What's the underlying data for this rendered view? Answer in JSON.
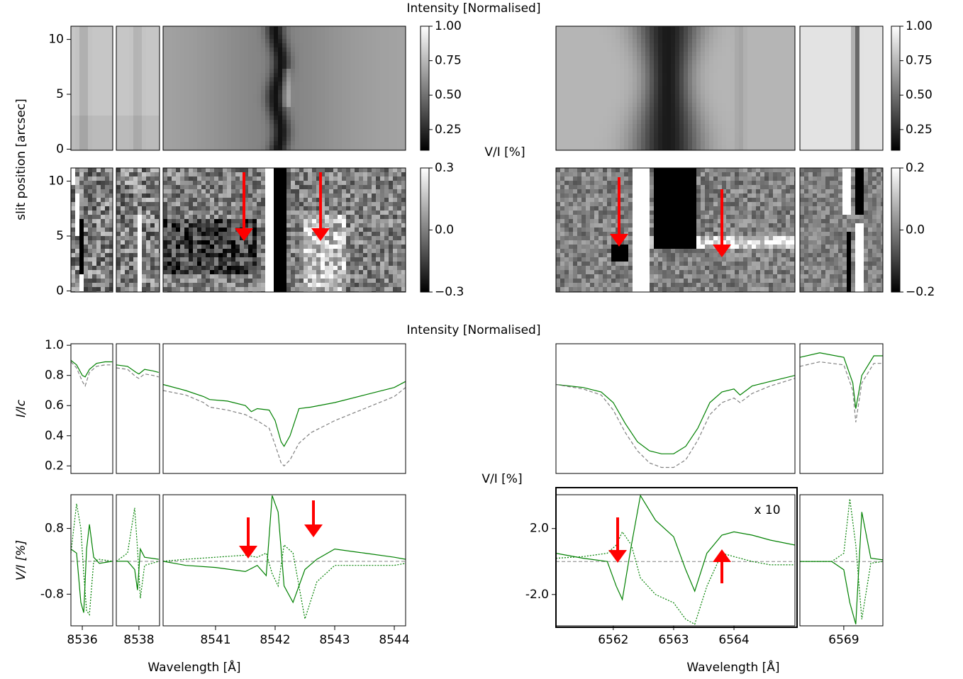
{
  "chart_data": [
    {
      "type": "heatmap",
      "title": "Intensity [Normalised]",
      "ylabel": "slit position [arcsec]",
      "xsegments": [
        [
          8535.6,
          8537.07
        ],
        [
          8537.2,
          8538.73
        ],
        [
          8540.12,
          8544.19
        ]
      ],
      "ylim": [
        -0.1,
        11.2
      ],
      "yticks": [
        0,
        5,
        10
      ],
      "clim": [
        0.1,
        1.0
      ],
      "cticks": [
        {
          "value": 1,
          "label": "1.00"
        },
        {
          "value": 0.75,
          "label": "0.75"
        },
        {
          "value": 0.5,
          "label": "0.50"
        },
        {
          "value": 0.25,
          "label": "0.25"
        }
      ]
    },
    {
      "type": "heatmap",
      "xsegments": [
        [
          6561.05,
          6565.01
        ],
        [
          6568.27,
          6569.65
        ]
      ],
      "ylim": [
        -0.1,
        11.2
      ],
      "clim": [
        0.1,
        1.0
      ],
      "cticks": [
        {
          "value": 1,
          "label": "1.00"
        },
        {
          "value": 0.75,
          "label": "0.75"
        },
        {
          "value": 0.5,
          "label": "0.50"
        },
        {
          "value": 0.25,
          "label": "0.25"
        }
      ]
    },
    {
      "type": "heatmap",
      "title": "V/I [%]",
      "xsegments": [
        [
          8535.6,
          8537.07
        ],
        [
          8537.2,
          8538.73
        ],
        [
          8540.12,
          8544.19
        ]
      ],
      "ylim": [
        -0.1,
        11.2
      ],
      "yticks": [
        0,
        5,
        10
      ],
      "clim": [
        -0.3,
        0.3
      ],
      "cticks": [
        0.3,
        {
          "value": 0,
          "label": "0.0"
        },
        {
          "value": -0.3,
          "label": "−0.3"
        }
      ]
    },
    {
      "type": "heatmap",
      "xsegments": [
        [
          6561.05,
          6565.01
        ],
        [
          6568.27,
          6569.65
        ]
      ],
      "ylim": [
        -0.1,
        11.2
      ],
      "clim": [
        -0.2,
        0.2
      ],
      "cticks": [
        0.2,
        {
          "value": 0,
          "label": "0.0"
        },
        {
          "value": -0.2,
          "label": "−0.2"
        }
      ]
    },
    {
      "type": "line",
      "title": "Intensity [Normalised]",
      "ylabel": "I/Ic",
      "xsegments": [
        [
          8535.6,
          8537.07
        ],
        [
          8537.2,
          8538.73
        ],
        [
          8540.12,
          8544.19
        ]
      ],
      "ylim": [
        0.15,
        1.01
      ],
      "yticks": [
        {
          "value": 1,
          "label": "1.0"
        },
        0.8,
        0.6,
        0.4,
        0.2
      ],
      "x": [
        8535.6,
        8535.8,
        8536.0,
        8536.1,
        8536.25,
        8536.5,
        8536.8,
        8537.05,
        null,
        8537.2,
        8537.6,
        8537.9,
        8538.0,
        8538.2,
        8538.5,
        8538.7,
        null,
        8540.12,
        8540.5,
        8540.8,
        8540.9,
        8541.2,
        8541.5,
        8541.6,
        8541.7,
        8541.9,
        8542.0,
        8542.1,
        8542.15,
        8542.25,
        8542.4,
        8542.6,
        8543.0,
        8543.5,
        8544.0,
        8544.19
      ],
      "series": [
        {
          "color": "#008000",
          "style": "solid",
          "values": [
            0.9,
            0.87,
            0.8,
            0.79,
            0.84,
            0.88,
            0.89,
            0.89,
            null,
            0.87,
            0.86,
            0.82,
            0.81,
            0.84,
            0.83,
            0.82,
            null,
            0.74,
            0.7,
            0.66,
            0.64,
            0.63,
            0.6,
            0.56,
            0.58,
            0.57,
            0.5,
            0.36,
            0.33,
            0.4,
            0.58,
            0.59,
            0.62,
            0.67,
            0.72,
            0.76
          ]
        },
        {
          "color": "#808080",
          "style": "dashed",
          "values": [
            0.89,
            0.85,
            0.76,
            0.73,
            0.82,
            0.86,
            0.87,
            0.87,
            null,
            0.85,
            0.84,
            0.79,
            0.78,
            0.81,
            0.8,
            0.79,
            null,
            0.7,
            0.67,
            0.62,
            0.59,
            0.57,
            0.54,
            0.52,
            0.5,
            0.45,
            0.34,
            0.22,
            0.2,
            0.24,
            0.35,
            0.42,
            0.5,
            0.58,
            0.66,
            0.72
          ]
        }
      ]
    },
    {
      "type": "line",
      "xsegments": [
        [
          6561.05,
          6565.01
        ],
        [
          6568.27,
          6569.65
        ]
      ],
      "ylim": [
        0.15,
        1.01
      ],
      "x": [
        6561.05,
        6561.5,
        6561.8,
        6562.0,
        6562.2,
        6562.4,
        6562.6,
        6562.8,
        6563.0,
        6563.2,
        6563.4,
        6563.6,
        6563.8,
        6564.0,
        6564.1,
        6564.3,
        6564.6,
        6565.01,
        null,
        6568.27,
        6568.6,
        6569.0,
        6569.15,
        6569.2,
        6569.3,
        6569.5,
        6569.65
      ],
      "series": [
        {
          "color": "#008000",
          "style": "solid",
          "values": [
            0.74,
            0.72,
            0.69,
            0.62,
            0.48,
            0.36,
            0.3,
            0.28,
            0.28,
            0.33,
            0.45,
            0.62,
            0.69,
            0.71,
            0.67,
            0.73,
            0.76,
            0.8,
            null,
            0.92,
            0.95,
            0.92,
            0.75,
            0.58,
            0.8,
            0.93,
            0.93
          ]
        },
        {
          "color": "#808080",
          "style": "dashed",
          "values": [
            0.74,
            0.71,
            0.67,
            0.57,
            0.42,
            0.3,
            0.22,
            0.19,
            0.19,
            0.24,
            0.37,
            0.54,
            0.62,
            0.65,
            0.62,
            0.68,
            0.73,
            0.78,
            null,
            0.86,
            0.89,
            0.87,
            0.7,
            0.49,
            0.75,
            0.88,
            0.88
          ]
        }
      ]
    },
    {
      "type": "line",
      "ylabel": "V/I [%]",
      "xlabel": "Wavelength [Å]",
      "xsegments": [
        [
          8535.6,
          8537.07
        ],
        [
          8537.2,
          8538.73
        ],
        [
          8540.12,
          8544.19
        ]
      ],
      "ylim": [
        -1.57,
        1.62
      ],
      "yticks": [
        0.8,
        -0.8
      ],
      "xticks": [
        8536,
        8538,
        8541,
        8542,
        8543,
        8544
      ],
      "hline": 0,
      "x": [
        8535.6,
        8535.8,
        8535.95,
        8536.05,
        8536.15,
        8536.25,
        8536.4,
        8536.6,
        8537.05,
        null,
        8537.2,
        8537.6,
        8537.85,
        8537.95,
        8538.05,
        8538.2,
        8538.7,
        null,
        8540.12,
        8540.5,
        8541.0,
        8541.5,
        8541.7,
        8541.85,
        8541.95,
        8542.05,
        8542.15,
        8542.3,
        8542.5,
        8542.7,
        8543.0,
        8543.5,
        8544.0,
        8544.19
      ],
      "series": [
        {
          "color": "#008000",
          "style": "solid",
          "values": [
            0.3,
            0.2,
            -1.0,
            -1.25,
            0.3,
            0.9,
            0.1,
            -0.05,
            0,
            null,
            0,
            0,
            -0.2,
            -0.7,
            0.3,
            0.1,
            0.05,
            null,
            0,
            -0.1,
            -0.15,
            -0.25,
            -0.1,
            -0.35,
            1.6,
            1.2,
            -0.6,
            -1.0,
            -0.2,
            0.05,
            0.3,
            0.2,
            0.1,
            0.05
          ]
        },
        {
          "color": "#008000",
          "style": "dotted",
          "values": [
            0.2,
            1.4,
            0.8,
            -0.3,
            -1.2,
            -1.3,
            0.0,
            0.05,
            0,
            null,
            0,
            0.2,
            1.3,
            0.3,
            -0.9,
            -0.1,
            0,
            null,
            0,
            0.05,
            0.1,
            0.15,
            0.1,
            0.2,
            -0.3,
            -0.6,
            0.4,
            0.2,
            -1.4,
            -0.5,
            -0.1,
            -0.1,
            -0.1,
            -0.05
          ]
        }
      ]
    },
    {
      "type": "line",
      "title": "V/I [%]",
      "xlabel": "Wavelength [Å]",
      "annotation": "x 10",
      "xsegments": [
        [
          6561.05,
          6565.01
        ],
        [
          6568.27,
          6569.65
        ]
      ],
      "ylim": [
        -3.9,
        4.05
      ],
      "yticks": [
        {
          "value": 2,
          "label": "2.0"
        },
        {
          "value": -2,
          "label": "-2.0"
        }
      ],
      "xticks": [
        6562,
        6563,
        6564,
        6569
      ],
      "hline": 0,
      "x": [
        6561.05,
        6561.5,
        6561.9,
        6562.05,
        6562.15,
        6562.3,
        6562.45,
        6562.7,
        6563.0,
        6563.2,
        6563.35,
        6563.55,
        6563.8,
        6564.0,
        6564.3,
        6564.6,
        6565.01,
        null,
        6568.27,
        6568.8,
        6569.0,
        6569.1,
        6569.2,
        6569.3,
        6569.45,
        6569.65
      ],
      "series": [
        {
          "color": "#008000",
          "style": "solid",
          "values": [
            0.5,
            0.2,
            0,
            -1.5,
            -2.3,
            1.0,
            4.0,
            2.5,
            1.5,
            -0.5,
            -1.8,
            0.5,
            1.6,
            1.8,
            1.6,
            1.3,
            1.0,
            null,
            0,
            0,
            -0.5,
            -2.5,
            -3.8,
            3.0,
            0.2,
            0.1
          ]
        },
        {
          "color": "#008000",
          "style": "dotted",
          "values": [
            0.2,
            0.3,
            0.5,
            1.0,
            1.8,
            1.0,
            -1.0,
            -2.0,
            -2.5,
            -3.5,
            -3.8,
            -1.5,
            0.5,
            0.3,
            0,
            -0.2,
            -0.2,
            null,
            0,
            0,
            0.5,
            3.8,
            1.0,
            -3.5,
            -0.1,
            0
          ]
        }
      ]
    }
  ]
}
